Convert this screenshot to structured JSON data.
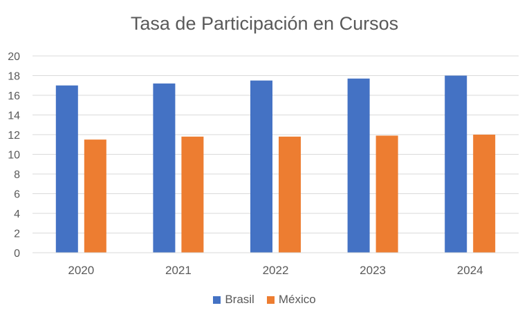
{
  "chart_data": {
    "type": "bar",
    "title": "Tasa de Participación en Cursos",
    "categories": [
      "2020",
      "2021",
      "2022",
      "2023",
      "2024"
    ],
    "series": [
      {
        "name": "Brasil",
        "color": "#4472C4",
        "values": [
          17.0,
          17.2,
          17.5,
          17.7,
          18.0
        ]
      },
      {
        "name": "México",
        "color": "#ED7D31",
        "values": [
          11.5,
          11.8,
          11.8,
          11.9,
          12.0
        ]
      }
    ],
    "ylim": [
      0,
      20
    ],
    "yticks": [
      0,
      2,
      4,
      6,
      8,
      10,
      12,
      14,
      16,
      18,
      20
    ],
    "grid": true,
    "legend_position": "bottom",
    "xlabel": "",
    "ylabel": ""
  }
}
